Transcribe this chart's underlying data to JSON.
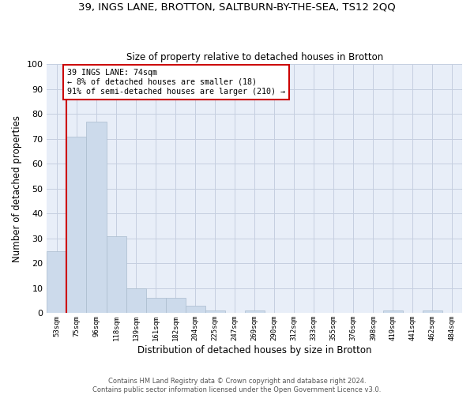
{
  "title1": "39, INGS LANE, BROTTON, SALTBURN-BY-THE-SEA, TS12 2QQ",
  "title2": "Size of property relative to detached houses in Brotton",
  "xlabel": "Distribution of detached houses by size in Brotton",
  "ylabel": "Number of detached properties",
  "bin_labels": [
    "53sqm",
    "75sqm",
    "96sqm",
    "118sqm",
    "139sqm",
    "161sqm",
    "182sqm",
    "204sqm",
    "225sqm",
    "247sqm",
    "269sqm",
    "290sqm",
    "312sqm",
    "333sqm",
    "355sqm",
    "376sqm",
    "398sqm",
    "419sqm",
    "441sqm",
    "462sqm",
    "484sqm"
  ],
  "bar_heights": [
    25,
    71,
    77,
    31,
    10,
    6,
    6,
    3,
    1,
    0,
    1,
    0,
    0,
    0,
    0,
    0,
    0,
    1,
    0,
    1,
    0
  ],
  "bar_color": "#ccdaeb",
  "bar_edge_color": "#aabcce",
  "grid_color": "#c5cfe0",
  "background_color": "#e8eef8",
  "annotation_text_line1": "39 INGS LANE: 74sqm",
  "annotation_text_line2": "← 8% of detached houses are smaller (18)",
  "annotation_text_line3": "91% of semi-detached houses are larger (210) →",
  "vline_color": "#cc0000",
  "box_edge_color": "#cc0000",
  "ylim": [
    0,
    100
  ],
  "yticks": [
    0,
    10,
    20,
    30,
    40,
    50,
    60,
    70,
    80,
    90,
    100
  ],
  "footnote": "Contains HM Land Registry data © Crown copyright and database right 2024.\nContains public sector information licensed under the Open Government Licence v3.0."
}
